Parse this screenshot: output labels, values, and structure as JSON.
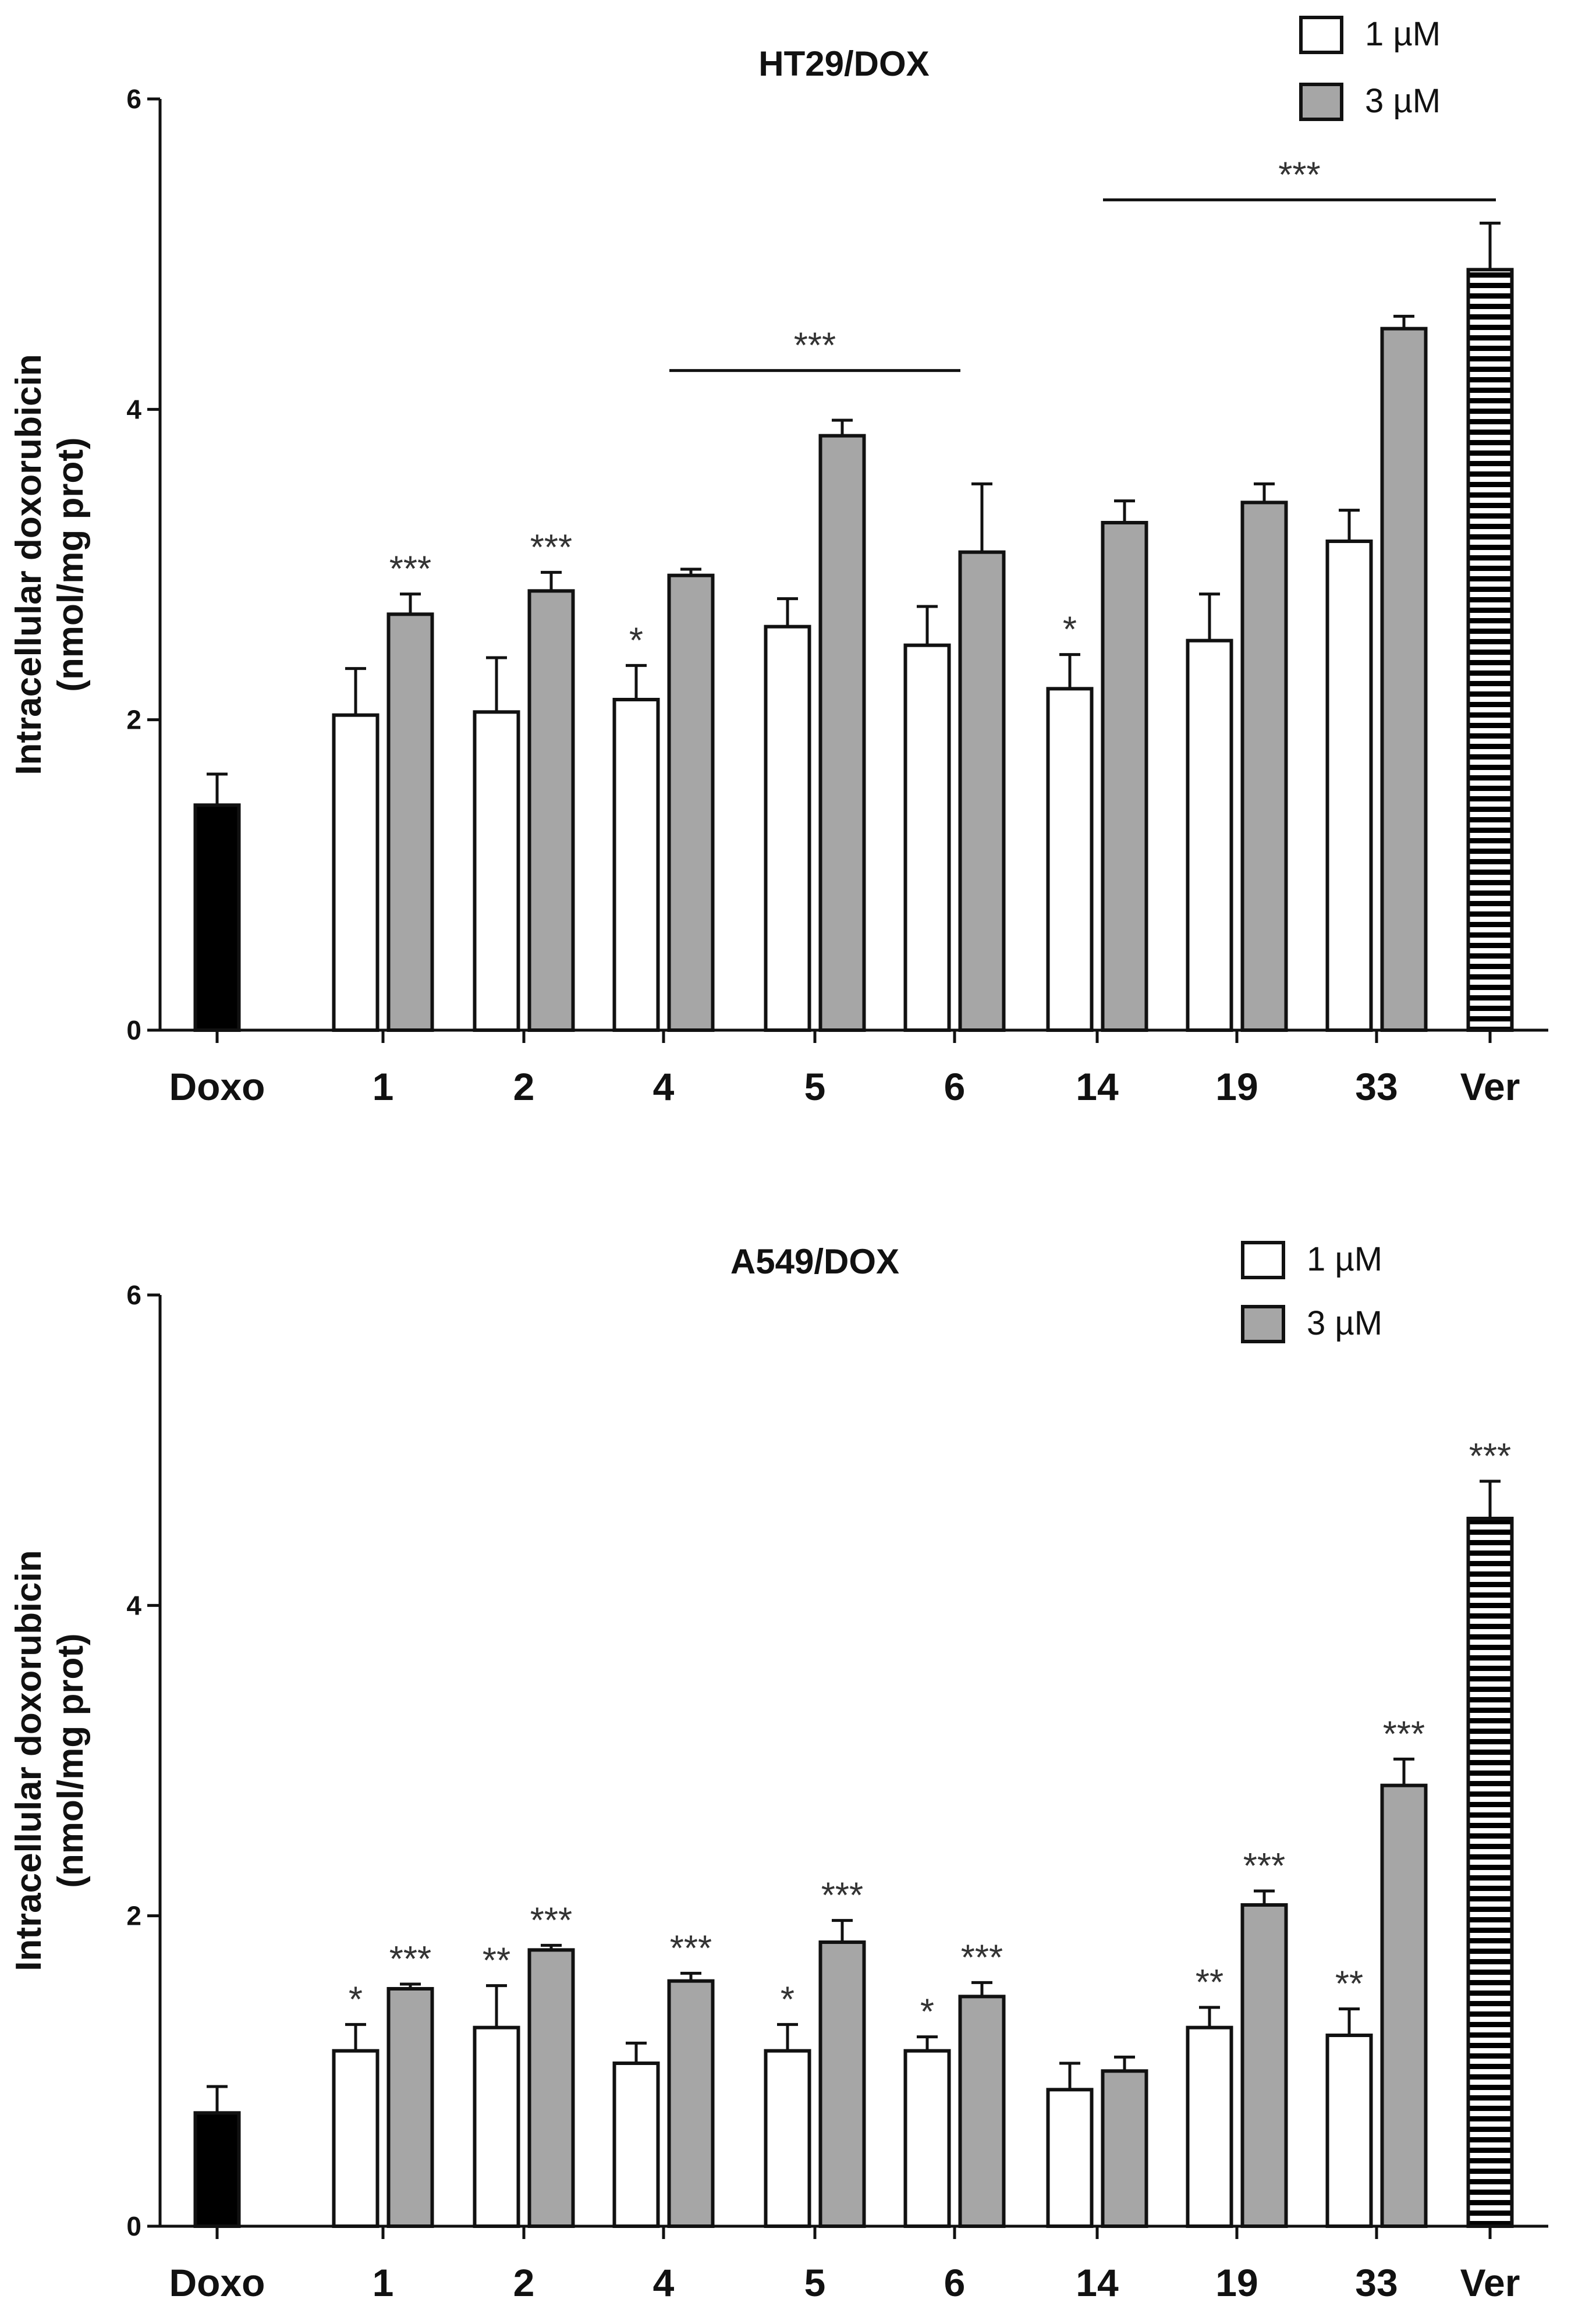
{
  "chart_data": [
    {
      "type": "bar",
      "title": "HT29/DOX",
      "ylabel_line1": "Intracellular doxorubicin",
      "ylabel_line2": "(nmol/mg prot)",
      "xlabel": "",
      "ylim": [
        0,
        6
      ],
      "yticks": [
        "0",
        "2",
        "4",
        "6"
      ],
      "categories": [
        "Doxo",
        "1",
        "2",
        "4",
        "5",
        "6",
        "14",
        "19",
        "33",
        "Ver"
      ],
      "legend": [
        {
          "label": "1 µM",
          "color": "#ffffff"
        },
        {
          "label": "3 µM",
          "color": "#a6a6a6"
        }
      ],
      "legend_position": "top-right",
      "bars": [
        {
          "category": "Doxo",
          "series": "control",
          "value": 1.45,
          "err": 0.2,
          "fill": "#000000",
          "sig": ""
        },
        {
          "category": "1",
          "series": "1 µM",
          "value": 2.03,
          "err": 0.3,
          "fill": "#ffffff",
          "sig": ""
        },
        {
          "category": "1",
          "series": "3 µM",
          "value": 2.68,
          "err": 0.13,
          "fill": "#a6a6a6",
          "sig": "***"
        },
        {
          "category": "2",
          "series": "1 µM",
          "value": 2.05,
          "err": 0.35,
          "fill": "#ffffff",
          "sig": ""
        },
        {
          "category": "2",
          "series": "3 µM",
          "value": 2.83,
          "err": 0.12,
          "fill": "#a6a6a6",
          "sig": "***"
        },
        {
          "category": "4",
          "series": "1 µM",
          "value": 2.13,
          "err": 0.22,
          "fill": "#ffffff",
          "sig": "*"
        },
        {
          "category": "4",
          "series": "3 µM",
          "value": 2.93,
          "err": 0.04,
          "fill": "#a6a6a6",
          "sig": ""
        },
        {
          "category": "5",
          "series": "1 µM",
          "value": 2.6,
          "err": 0.18,
          "fill": "#ffffff",
          "sig": ""
        },
        {
          "category": "5",
          "series": "3 µM",
          "value": 3.83,
          "err": 0.1,
          "fill": "#a6a6a6",
          "sig": ""
        },
        {
          "category": "6",
          "series": "1 µM",
          "value": 2.48,
          "err": 0.25,
          "fill": "#ffffff",
          "sig": ""
        },
        {
          "category": "6",
          "series": "3 µM",
          "value": 3.08,
          "err": 0.44,
          "fill": "#a6a6a6",
          "sig": ""
        },
        {
          "category": "14",
          "series": "1 µM",
          "value": 2.2,
          "err": 0.22,
          "fill": "#ffffff",
          "sig": "*"
        },
        {
          "category": "14",
          "series": "3 µM",
          "value": 3.27,
          "err": 0.14,
          "fill": "#a6a6a6",
          "sig": ""
        },
        {
          "category": "19",
          "series": "1 µM",
          "value": 2.51,
          "err": 0.3,
          "fill": "#ffffff",
          "sig": ""
        },
        {
          "category": "19",
          "series": "3 µM",
          "value": 3.4,
          "err": 0.12,
          "fill": "#a6a6a6",
          "sig": ""
        },
        {
          "category": "33",
          "series": "1 µM",
          "value": 3.15,
          "err": 0.2,
          "fill": "#ffffff",
          "sig": ""
        },
        {
          "category": "33",
          "series": "3 µM",
          "value": 4.52,
          "err": 0.08,
          "fill": "#a6a6a6",
          "sig": ""
        },
        {
          "category": "Ver",
          "series": "control",
          "value": 4.9,
          "err": 0.3,
          "fill": "striped",
          "sig": ""
        }
      ],
      "brackets": [
        {
          "from_category": "4",
          "to_category": "6",
          "label": "***",
          "y_value": 4.25
        },
        {
          "from_category": "14",
          "to_category": "Ver",
          "label": "***",
          "y_value": 5.35
        }
      ]
    },
    {
      "type": "bar",
      "title": "A549/DOX",
      "ylabel_line1": "Intracellular doxorubicin",
      "ylabel_line2": "(nmol/mg prot)",
      "xlabel": "",
      "ylim": [
        0,
        6
      ],
      "yticks": [
        "0",
        "2",
        "4",
        "6"
      ],
      "categories": [
        "Doxo",
        "1",
        "2",
        "4",
        "5",
        "6",
        "14",
        "19",
        "33",
        "Ver"
      ],
      "legend": [
        {
          "label": "1 µM",
          "color": "#ffffff"
        },
        {
          "label": "3 µM",
          "color": "#a6a6a6"
        }
      ],
      "legend_position": "top-right",
      "bars": [
        {
          "category": "Doxo",
          "series": "control",
          "value": 0.73,
          "err": 0.17,
          "fill": "#000000",
          "sig": ""
        },
        {
          "category": "1",
          "series": "1 µM",
          "value": 1.13,
          "err": 0.17,
          "fill": "#ffffff",
          "sig": "*"
        },
        {
          "category": "1",
          "series": "3 µM",
          "value": 1.53,
          "err": 0.03,
          "fill": "#a6a6a6",
          "sig": "***"
        },
        {
          "category": "2",
          "series": "1 µM",
          "value": 1.28,
          "err": 0.27,
          "fill": "#ffffff",
          "sig": "**"
        },
        {
          "category": "2",
          "series": "3 µM",
          "value": 1.78,
          "err": 0.03,
          "fill": "#a6a6a6",
          "sig": "***"
        },
        {
          "category": "4",
          "series": "1 µM",
          "value": 1.05,
          "err": 0.13,
          "fill": "#ffffff",
          "sig": ""
        },
        {
          "category": "4",
          "series": "3 µM",
          "value": 1.58,
          "err": 0.05,
          "fill": "#a6a6a6",
          "sig": "***"
        },
        {
          "category": "5",
          "series": "1 µM",
          "value": 1.13,
          "err": 0.17,
          "fill": "#ffffff",
          "sig": "*"
        },
        {
          "category": "5",
          "series": "3 µM",
          "value": 1.83,
          "err": 0.14,
          "fill": "#a6a6a6",
          "sig": "***"
        },
        {
          "category": "6",
          "series": "1 µM",
          "value": 1.13,
          "err": 0.09,
          "fill": "#ffffff",
          "sig": "*"
        },
        {
          "category": "6",
          "series": "3 µM",
          "value": 1.48,
          "err": 0.09,
          "fill": "#a6a6a6",
          "sig": "***"
        },
        {
          "category": "14",
          "series": "1 µM",
          "value": 0.88,
          "err": 0.17,
          "fill": "#ffffff",
          "sig": ""
        },
        {
          "category": "14",
          "series": "3 µM",
          "value": 1.0,
          "err": 0.09,
          "fill": "#a6a6a6",
          "sig": ""
        },
        {
          "category": "19",
          "series": "1 µM",
          "value": 1.28,
          "err": 0.13,
          "fill": "#ffffff",
          "sig": "**"
        },
        {
          "category": "19",
          "series": "3 µM",
          "value": 2.07,
          "err": 0.09,
          "fill": "#a6a6a6",
          "sig": "***"
        },
        {
          "category": "33",
          "series": "1 µM",
          "value": 1.23,
          "err": 0.17,
          "fill": "#ffffff",
          "sig": "**"
        },
        {
          "category": "33",
          "series": "3 µM",
          "value": 2.84,
          "err": 0.17,
          "fill": "#a6a6a6",
          "sig": "***"
        },
        {
          "category": "Ver",
          "series": "control",
          "value": 4.56,
          "err": 0.24,
          "fill": "striped",
          "sig": "***"
        }
      ],
      "brackets": []
    }
  ]
}
